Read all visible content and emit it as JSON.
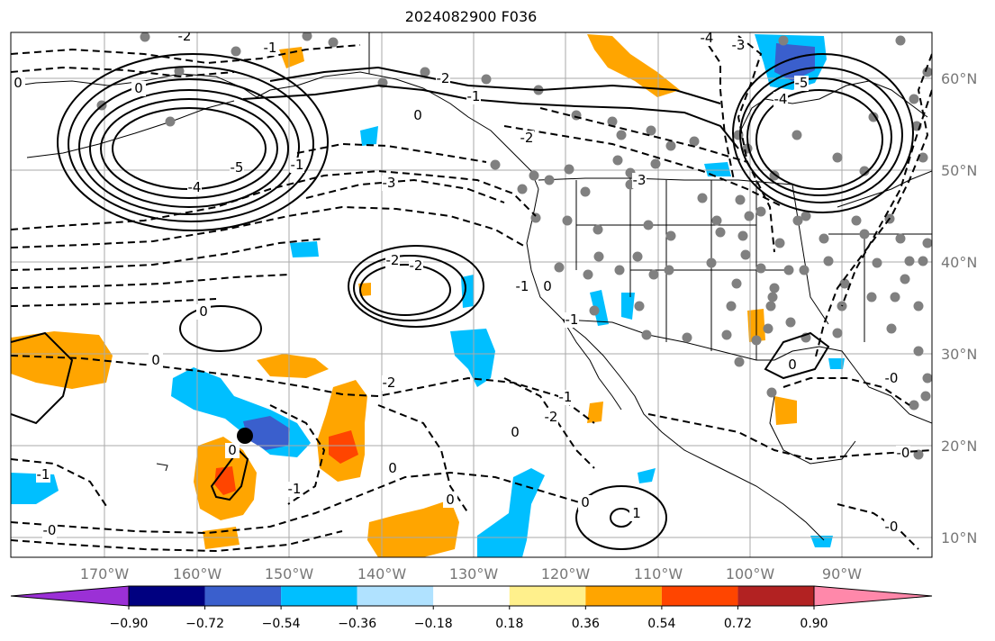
{
  "title": "2024082900 F036",
  "lat_labels": [
    "60°N",
    "50°N",
    "40°N",
    "30°N",
    "20°N",
    "10°N"
  ],
  "lon_labels": [
    "170°W",
    "160°W",
    "150°W",
    "140°W",
    "130°W",
    "120°W",
    "110°W",
    "100°W",
    "90°W"
  ],
  "colorbar": {
    "ticks": [
      "−0.90",
      "−0.72",
      "−0.54",
      "−0.36",
      "−0.18",
      "0.18",
      "0.36",
      "0.54",
      "0.72",
      "0.90"
    ],
    "colors": [
      "#9b30d6",
      "#000080",
      "#3a5fcd",
      "#00bfff",
      "#b0e2ff",
      "#ffffff",
      "#fff08c",
      "#ffa500",
      "#ff4500",
      "#b22222",
      "#ff88aa"
    ]
  },
  "contour_labels": [
    {
      "text": "-2",
      "at": "north Pacific"
    },
    {
      "text": "-1",
      "at": "north Pacific"
    },
    {
      "text": "-4",
      "at": "Hudson Bay"
    },
    {
      "text": "-3",
      "at": "Hudson Bay"
    },
    {
      "text": "-2",
      "at": "Gulf of Alaska"
    },
    {
      "text": "-1",
      "at": "Gulf of Alaska"
    },
    {
      "text": "0",
      "at": "Alaska"
    },
    {
      "text": "0",
      "at": "Alaska coast"
    },
    {
      "text": "0",
      "at": "Bering Sea"
    },
    {
      "text": "-2",
      "at": "Pacific Northwest"
    },
    {
      "text": "-3",
      "at": "Montana"
    },
    {
      "text": "-5",
      "at": "Aleutian low"
    },
    {
      "text": "-4",
      "at": "Aleutian low"
    },
    {
      "text": "-1",
      "at": "Aleutian low"
    },
    {
      "text": "-3",
      "at": "northeast Pacific"
    },
    {
      "text": "-5",
      "at": "Great Lakes low"
    },
    {
      "text": "-4",
      "at": "Great Lakes low"
    },
    {
      "text": "-2",
      "at": "off California"
    },
    {
      "text": "-2",
      "at": "off California"
    },
    {
      "text": "-1",
      "at": "off California"
    },
    {
      "text": "0",
      "at": "California coast"
    },
    {
      "text": "-1",
      "at": "Baja California"
    },
    {
      "text": "0",
      "at": "central Pacific"
    },
    {
      "text": "0",
      "at": "central Pacific"
    },
    {
      "text": "-2",
      "at": "subtropical Pacific"
    },
    {
      "text": "-2",
      "at": "Gulf of California"
    },
    {
      "text": "-1",
      "at": "west of Mexico"
    },
    {
      "text": "0",
      "at": "near Hawaii"
    },
    {
      "text": "0",
      "at": "near Hawaii"
    },
    {
      "text": "-1",
      "at": "west edge"
    },
    {
      "text": "-0",
      "at": "west edge"
    },
    {
      "text": "-1",
      "at": "west edge"
    },
    {
      "text": "0",
      "at": "tropical Pacific"
    },
    {
      "text": "0",
      "at": "tropical Pacific"
    },
    {
      "text": "0",
      "at": "tropical Pacific"
    },
    {
      "text": "1",
      "at": "tropical Pacific"
    },
    {
      "text": "0",
      "at": "Gulf of Mexico"
    },
    {
      "text": "-0",
      "at": "Gulf of Mexico"
    },
    {
      "text": "-0",
      "at": "Gulf of Mexico"
    },
    {
      "text": "-0",
      "at": "Caribbean"
    }
  ],
  "storm_marker": "black dot near Hawaii",
  "colors": {
    "contour": "#000000",
    "station": "#808080",
    "grid": "#aaaaaa",
    "land": "#000000"
  }
}
